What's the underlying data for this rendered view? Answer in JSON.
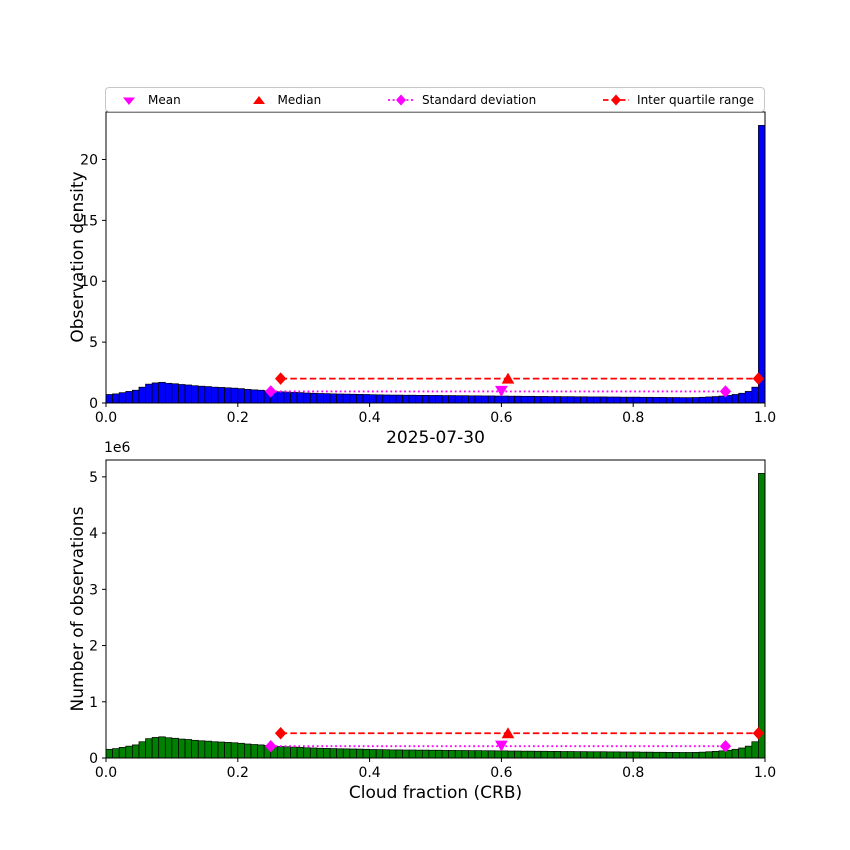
{
  "title": "2025-07-30",
  "xlabel": "Cloud fraction (CRB)",
  "colors": {
    "mean": "#FF00FF",
    "median": "#FF0000",
    "std_dev": "#FF00FF",
    "iqr": "#FF0000",
    "axes_frame": "#000000"
  },
  "legend": {
    "entries": [
      {
        "label": "Mean",
        "marker": "triangle-down",
        "color": "#FF00FF",
        "linestyle": "none"
      },
      {
        "label": "Median",
        "marker": "triangle-up",
        "color": "#FF0000",
        "linestyle": "none"
      },
      {
        "label": "Standard deviation",
        "marker": "diamond",
        "color": "#FF00FF",
        "linestyle": "dotted"
      },
      {
        "label": "Inter quartile range",
        "marker": "diamond",
        "color": "#FF0000",
        "linestyle": "dashed"
      }
    ]
  },
  "chart_data": [
    {
      "type": "bar",
      "subplot": "top",
      "ylabel": "Observation density",
      "bar_color": "#0000FF",
      "xlim": [
        0,
        1
      ],
      "ylim": [
        0,
        23.9
      ],
      "bin_width": 0.01,
      "xticks": [
        0,
        0.2,
        0.4,
        0.6,
        0.8,
        1.0
      ],
      "xtick_labels": [
        "0.0",
        "0.2",
        "0.4",
        "0.6",
        "0.8",
        "1.0"
      ],
      "yticks": [
        0,
        5,
        10,
        15,
        20
      ],
      "ytick_labels": [
        "0",
        "5",
        "10",
        "15",
        "20"
      ],
      "values": [
        0.7,
        0.75,
        0.85,
        0.95,
        1.05,
        1.3,
        1.55,
        1.65,
        1.7,
        1.62,
        1.58,
        1.52,
        1.48,
        1.42,
        1.38,
        1.35,
        1.3,
        1.28,
        1.25,
        1.22,
        1.18,
        1.12,
        1.08,
        1.05,
        1.0,
        0.95,
        0.92,
        0.9,
        0.88,
        0.85,
        0.82,
        0.8,
        0.78,
        0.77,
        0.75,
        0.74,
        0.73,
        0.72,
        0.71,
        0.7,
        0.68,
        0.67,
        0.66,
        0.65,
        0.65,
        0.64,
        0.64,
        0.63,
        0.63,
        0.62,
        0.62,
        0.61,
        0.61,
        0.6,
        0.6,
        0.59,
        0.59,
        0.58,
        0.58,
        0.57,
        0.57,
        0.56,
        0.56,
        0.55,
        0.55,
        0.54,
        0.54,
        0.53,
        0.53,
        0.52,
        0.52,
        0.51,
        0.51,
        0.5,
        0.5,
        0.5,
        0.49,
        0.49,
        0.48,
        0.48,
        0.48,
        0.47,
        0.47,
        0.46,
        0.46,
        0.45,
        0.45,
        0.44,
        0.44,
        0.45,
        0.47,
        0.5,
        0.53,
        0.57,
        0.62,
        0.7,
        0.8,
        0.95,
        1.3,
        22.8
      ],
      "markers": {
        "mean": {
          "x": 0.6,
          "y": 1.0
        },
        "median": {
          "x": 0.61,
          "y": 2.0
        },
        "std_range": {
          "x_start": 0.25,
          "x_end": 0.94,
          "y": 0.95
        },
        "iqr_range": {
          "x_start": 0.265,
          "x_end": 0.99,
          "y": 2.0
        }
      }
    },
    {
      "type": "bar",
      "subplot": "bottom",
      "ylabel": "Number of observations",
      "y_offset_text": "1e6",
      "bar_color": "#008000",
      "xlim": [
        0,
        1
      ],
      "ylim": [
        0,
        5.3
      ],
      "bin_width": 0.01,
      "xticks": [
        0,
        0.2,
        0.4,
        0.6,
        0.8,
        1.0
      ],
      "xtick_labels": [
        "0.0",
        "0.2",
        "0.4",
        "0.6",
        "0.8",
        "1.0"
      ],
      "yticks": [
        0,
        1,
        2,
        3,
        4,
        5
      ],
      "ytick_labels": [
        "0",
        "1",
        "2",
        "3",
        "4",
        "5"
      ],
      "values": [
        0.155,
        0.167,
        0.189,
        0.211,
        0.233,
        0.289,
        0.344,
        0.366,
        0.377,
        0.36,
        0.351,
        0.337,
        0.329,
        0.315,
        0.306,
        0.3,
        0.289,
        0.284,
        0.278,
        0.271,
        0.262,
        0.249,
        0.24,
        0.233,
        0.222,
        0.211,
        0.204,
        0.2,
        0.195,
        0.189,
        0.182,
        0.178,
        0.173,
        0.171,
        0.167,
        0.164,
        0.162,
        0.16,
        0.158,
        0.155,
        0.151,
        0.149,
        0.147,
        0.144,
        0.144,
        0.142,
        0.142,
        0.14,
        0.14,
        0.138,
        0.138,
        0.135,
        0.135,
        0.133,
        0.133,
        0.131,
        0.131,
        0.129,
        0.129,
        0.127,
        0.127,
        0.124,
        0.124,
        0.122,
        0.122,
        0.12,
        0.12,
        0.118,
        0.118,
        0.115,
        0.115,
        0.113,
        0.113,
        0.111,
        0.111,
        0.111,
        0.109,
        0.109,
        0.107,
        0.107,
        0.107,
        0.104,
        0.104,
        0.102,
        0.102,
        0.1,
        0.1,
        0.098,
        0.098,
        0.1,
        0.104,
        0.111,
        0.118,
        0.127,
        0.138,
        0.155,
        0.178,
        0.211,
        0.289,
        5.062
      ],
      "markers": {
        "mean": {
          "x": 0.6,
          "y": 0.22
        },
        "median": {
          "x": 0.61,
          "y": 0.44
        },
        "std_range": {
          "x_start": 0.25,
          "x_end": 0.94,
          "y": 0.21
        },
        "iqr_range": {
          "x_start": 0.265,
          "x_end": 0.99,
          "y": 0.44
        }
      }
    }
  ]
}
